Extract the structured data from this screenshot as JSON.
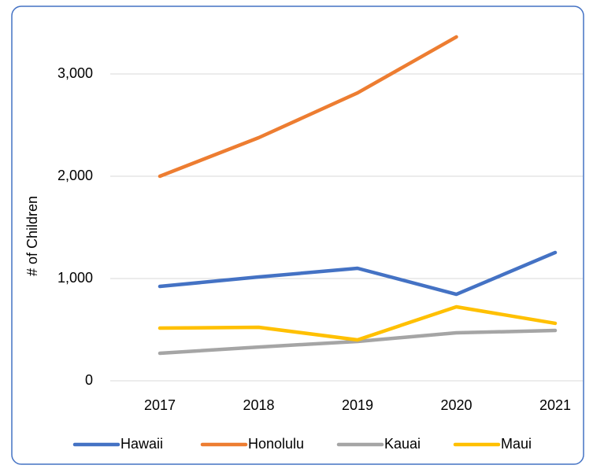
{
  "chart_data": {
    "type": "line",
    "y_axis_label": "# of Children",
    "categories": [
      "2017",
      "2018",
      "2019",
      "2020",
      "2021"
    ],
    "series": [
      {
        "name": "Hawaii",
        "color": "#4472c4",
        "values": [
          923,
          1015,
          1100,
          846,
          1254
        ]
      },
      {
        "name": "Honolulu",
        "color": "#ed7d31",
        "values": [
          2000,
          2377,
          2815,
          3362,
          null
        ]
      },
      {
        "name": "Kauai",
        "color": "#a5a5a5",
        "values": [
          269,
          330,
          385,
          469,
          492
        ]
      },
      {
        "name": "Maui",
        "color": "#ffc000",
        "values": [
          515,
          523,
          400,
          723,
          562
        ]
      }
    ],
    "ylim": [
      0,
      3500
    ],
    "yticks": [
      0,
      {
        "value": 1000,
        "label": "1,000"
      },
      {
        "value": 2000,
        "label": "2,000"
      },
      {
        "value": 3000,
        "label": "3,000"
      }
    ],
    "grid": true,
    "legend": "bottom"
  }
}
